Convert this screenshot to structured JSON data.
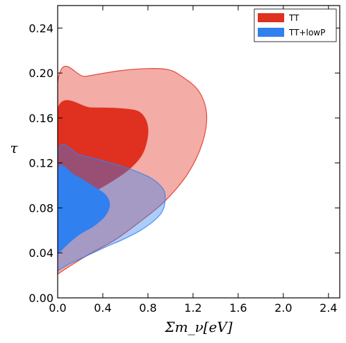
{
  "chart_data": {
    "type": "contour",
    "xlabel": "Σm_ν[eV]",
    "ylabel": "τ",
    "xlim": [
      0.0,
      2.5
    ],
    "ylim": [
      0.0,
      0.26
    ],
    "xticks": [
      0.0,
      0.4,
      0.8,
      1.2,
      1.6,
      2.0,
      2.4
    ],
    "yticks": [
      0.0,
      0.04,
      0.08,
      0.12,
      0.16,
      0.2,
      0.24
    ],
    "xtick_labels": [
      "0.0",
      "0.4",
      "0.8",
      "1.2",
      "1.6",
      "2.0",
      "2.4"
    ],
    "ytick_labels": [
      "0.00",
      "0.04",
      "0.08",
      "0.12",
      "0.16",
      "0.20",
      "0.24"
    ],
    "legend_position": "top-right",
    "series": [
      {
        "name": "TT",
        "color": "#e03020",
        "contours": [
          {
            "level": "95%",
            "opacity": 0.4,
            "points": [
              [
                0.0,
                0.021
              ],
              [
                0.0,
                0.192
              ],
              [
                0.25,
                0.197
              ],
              [
                0.55,
                0.202
              ],
              [
                0.8,
                0.204
              ],
              [
                0.98,
                0.203
              ],
              [
                1.1,
                0.197
              ],
              [
                1.25,
                0.184
              ],
              [
                1.32,
                0.163
              ],
              [
                1.28,
                0.137
              ],
              [
                1.15,
                0.11
              ],
              [
                0.95,
                0.086
              ],
              [
                0.72,
                0.067
              ],
              [
                0.5,
                0.051
              ],
              [
                0.3,
                0.04
              ],
              [
                0.12,
                0.029
              ],
              [
                0.0,
                0.021
              ]
            ]
          },
          {
            "level": "68%",
            "opacity": 1.0,
            "points": [
              [
                0.0,
                0.07
              ],
              [
                0.0,
                0.168
              ],
              [
                0.3,
                0.169
              ],
              [
                0.6,
                0.168
              ],
              [
                0.74,
                0.164
              ],
              [
                0.8,
                0.15
              ],
              [
                0.76,
                0.13
              ],
              [
                0.65,
                0.116
              ],
              [
                0.5,
                0.105
              ],
              [
                0.3,
                0.093
              ],
              [
                0.12,
                0.081
              ],
              [
                0.0,
                0.07
              ]
            ]
          }
        ]
      },
      {
        "name": "TT+lowP",
        "color": "#3080f0",
        "contours": [
          {
            "level": "95%",
            "opacity": 0.4,
            "points": [
              [
                0.0,
                0.024
              ],
              [
                0.0,
                0.129
              ],
              [
                0.2,
                0.127
              ],
              [
                0.4,
                0.122
              ],
              [
                0.6,
                0.116
              ],
              [
                0.8,
                0.108
              ],
              [
                0.9,
                0.101
              ],
              [
                0.95,
                0.093
              ],
              [
                0.94,
                0.08
              ],
              [
                0.88,
                0.071
              ],
              [
                0.75,
                0.061
              ],
              [
                0.58,
                0.052
              ],
              [
                0.42,
                0.045
              ],
              [
                0.25,
                0.037
              ],
              [
                0.1,
                0.03
              ],
              [
                0.0,
                0.024
              ]
            ]
          },
          {
            "level": "68%",
            "opacity": 1.0,
            "points": [
              [
                0.0,
                0.039
              ],
              [
                0.0,
                0.113
              ],
              [
                0.15,
                0.109
              ],
              [
                0.3,
                0.1
              ],
              [
                0.42,
                0.092
              ],
              [
                0.46,
                0.083
              ],
              [
                0.42,
                0.073
              ],
              [
                0.32,
                0.064
              ],
              [
                0.2,
                0.057
              ],
              [
                0.1,
                0.049
              ],
              [
                0.0,
                0.039
              ]
            ]
          }
        ]
      }
    ]
  }
}
